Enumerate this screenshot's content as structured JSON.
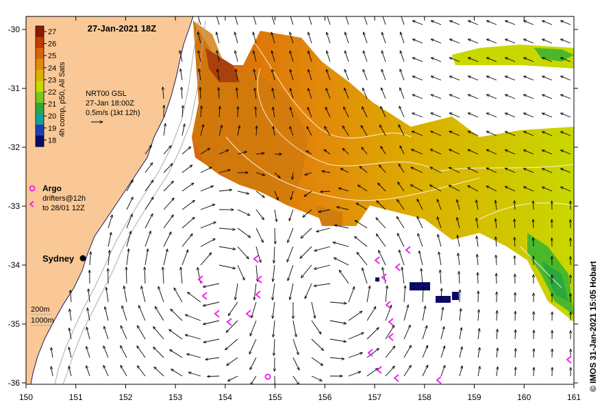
{
  "title": "27-Jan-2021 18Z",
  "colorbar": {
    "label": "4h comp, p50, All Sats",
    "ticks": [
      "27",
      "26",
      "25",
      "24",
      "23",
      "22",
      "21",
      "20",
      "19",
      "18"
    ],
    "colors": [
      "#8b1a00",
      "#c23b00",
      "#d9650a",
      "#e08a0a",
      "#dcb000",
      "#c8d800",
      "#77c81e",
      "#2aa83c",
      "#14a09a",
      "#1b3fb0",
      "#0a0a6b"
    ]
  },
  "info": {
    "line1": "NRT00 GSL",
    "line2": "27-Jan 18:00Z",
    "line3": "0.5m/s (1kt 12h)"
  },
  "legend": {
    "argo": "Argo",
    "drifters1": "drifters@12h",
    "drifters2": "to 28/01 12Z"
  },
  "city": "Sydney",
  "isobaths": {
    "a": "200m",
    "b": "1000m"
  },
  "credit": "© IMOS 31-Jan-2021 15:05 Hobart",
  "axes": {
    "x_ticks": [
      "150",
      "151",
      "152",
      "153",
      "154",
      "155",
      "156",
      "157",
      "158",
      "159",
      "160",
      "161"
    ],
    "y_ticks": [
      "-30",
      "-31",
      "-32",
      "-33",
      "-34",
      "-35",
      "-36"
    ]
  },
  "colors": {
    "land": "#f9c896",
    "argo": "#ee22ee",
    "ocean": "#ffffff"
  }
}
